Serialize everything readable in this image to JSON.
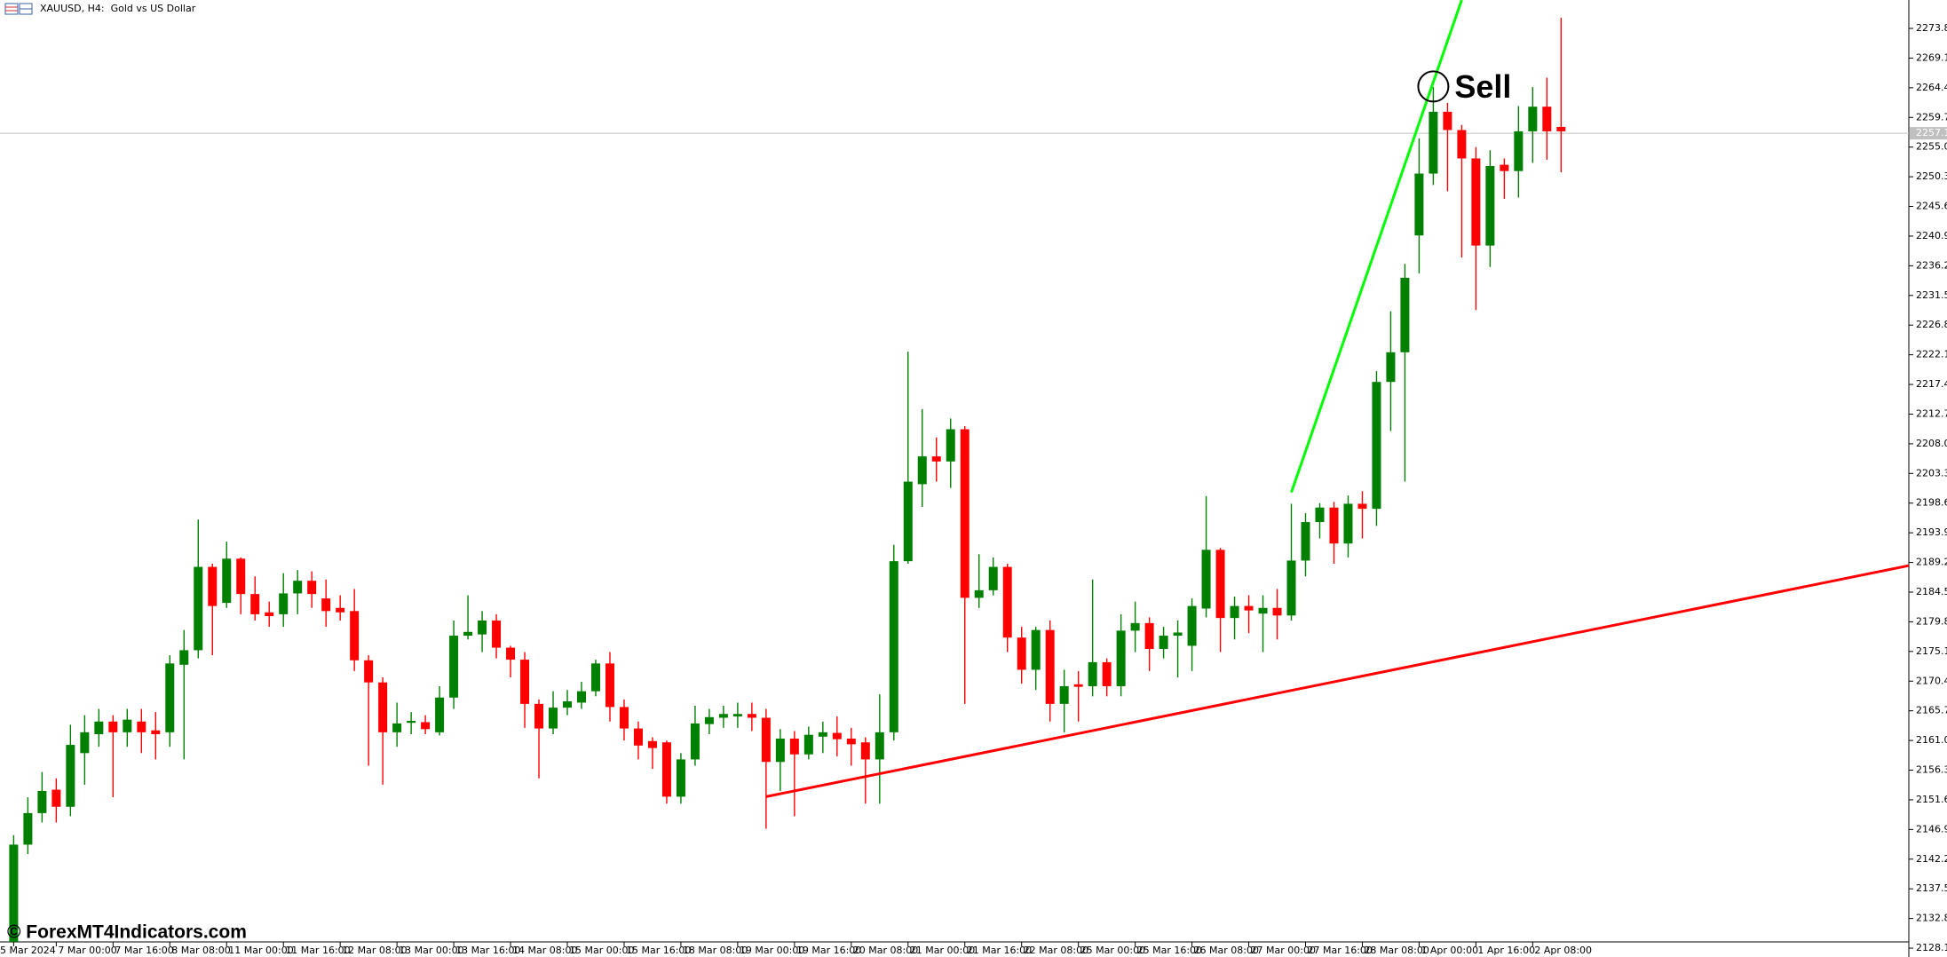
{
  "chart_data": {
    "type": "candlestick",
    "title": "XAUUSD, H4:  Gold vs US Dollar",
    "watermark": "© ForexMT4Indicators.com",
    "categories": [
      "5 Mar 2024",
      null,
      null,
      "7 Mar 00:00",
      null,
      null,
      null,
      "7 Mar 16:00",
      null,
      null,
      null,
      "8 Mar 08:00",
      null,
      null,
      null,
      "11 Mar 00:00",
      null,
      null,
      null,
      "11 Mar 16:00",
      null,
      null,
      null,
      "12 Mar 08:00",
      null,
      null,
      null,
      "13 Mar 00:00",
      null,
      null,
      null,
      "13 Mar 16:00",
      null,
      null,
      null,
      "14 Mar 08:00",
      null,
      null,
      null,
      "15 Mar 00:00",
      null,
      null,
      null,
      "15 Mar 16:00",
      null,
      null,
      null,
      "18 Mar 08:00",
      null,
      null,
      null,
      "19 Mar 00:00",
      null,
      null,
      null,
      "19 Mar 16:00",
      null,
      null,
      null,
      "20 Mar 08:00",
      null,
      null,
      null,
      "21 Mar 00:00",
      null,
      null,
      null,
      "21 Mar 16:00",
      null,
      null,
      null,
      "22 Mar 08:00",
      null,
      null,
      null,
      "25 Mar 00:00",
      null,
      null,
      null,
      "25 Mar 16:00",
      null,
      null,
      null,
      "26 Mar 08:00",
      null,
      null,
      null,
      "27 Mar 00:00",
      null,
      null,
      null,
      "27 Mar 16:00",
      null,
      null,
      null,
      "28 Mar 08:00",
      null,
      null,
      null,
      "1 Apr 00:00",
      null,
      null,
      null,
      "1 Apr 16:00",
      null,
      null,
      null,
      "2 Apr 08:00",
      null,
      null
    ],
    "open": [
      2129,
      2144.5,
      2149.5,
      2153.2,
      2150.5,
      2159,
      2162,
      2164,
      2162.3,
      2164,
      2162.6,
      2162.3,
      2173,
      2175.3,
      2188.5,
      2182.8,
      2189.8,
      2184.2,
      2181.3,
      2181,
      2184.3,
      2186.3,
      2183.5,
      2182,
      2181.5,
      2173.7,
      2170.2,
      2162.3,
      2163.8,
      2163.9,
      2162.3,
      2167.8,
      2177.6,
      2177.8,
      2180,
      2175.7,
      2173.8,
      2166.8,
      2162.9,
      2166.2,
      2167,
      2168.8,
      2173.2,
      2166.3,
      2162.9,
      2160.9,
      2160.7,
      2152.1,
      2158,
      2163.6,
      2164.6,
      2164.8,
      2165.2,
      2164.6,
      2157.6,
      2161.3,
      2158.8,
      2161.6,
      2162.2,
      2161.3,
      2160.7,
      2158,
      2162.3,
      2189.4,
      2201.6,
      2206,
      2205.2,
      2210.3,
      2183.6,
      2184.8,
      2188.5,
      2177.3,
      2172.2,
      2178.5,
      2166.8,
      2169.9,
      2169.6,
      2173.4,
      2169.6,
      2178.4,
      2179.6,
      2175.5,
      2177.6,
      2176,
      2181.9,
      2191.2,
      2180.4,
      2182.3,
      2181.1,
      2182,
      2180.8,
      2189.5,
      2195.6,
      2197.9,
      2192.2,
      2198.5,
      2197.7,
      2217.8,
      2222.5,
      2241,
      2250.8,
      2260.6,
      2257.7,
      2253.2,
      2239.4,
      2252.2,
      2251.2,
      2257.5,
      2261.4,
      2258.2
    ],
    "high": [
      2146,
      2152,
      2156,
      2155,
      2163.5,
      2165,
      2166,
      2165,
      2166,
      2166,
      2165.5,
      2174.5,
      2178.5,
      2196,
      2189,
      2192.5,
      2190,
      2187,
      2183,
      2187.5,
      2188,
      2187.8,
      2186.5,
      2184,
      2185,
      2174.5,
      2171,
      2167,
      2165.5,
      2165,
      2169.6,
      2180,
      2184,
      2181.5,
      2181,
      2176,
      2175,
      2167.5,
      2168.8,
      2169,
      2170.3,
      2173.8,
      2175,
      2167.5,
      2164,
      2161.5,
      2161,
      2159,
      2166.5,
      2166,
      2166.5,
      2167,
      2167,
      2166,
      2162.8,
      2162.5,
      2163.2,
      2164,
      2164.8,
      2163,
      2161.5,
      2168.3,
      2192,
      2222.6,
      2213.5,
      2209,
      2212,
      2210.8,
      2190.5,
      2190,
      2189,
      2179,
      2179,
      2180,
      2172.2,
      2172,
      2186.5,
      2174,
      2181,
      2183,
      2180.5,
      2179,
      2180,
      2183.5,
      2199.7,
      2191.5,
      2183.8,
      2184,
      2184,
      2185,
      2198.5,
      2197,
      2198.6,
      2198.8,
      2199.8,
      2200.5,
      2219.5,
      2229,
      2236.5,
      2256.4,
      2264.5,
      2262,
      2258.5,
      2255,
      2254.5,
      2253.2,
      2261.5,
      2264.5,
      2266,
      2275.5
    ],
    "low": [
      2127.5,
      2143,
      2148,
      2148,
      2149,
      2154,
      2160,
      2152,
      2160,
      2159,
      2158,
      2160,
      2158,
      2174,
      2174.5,
      2182,
      2181,
      2180,
      2179,
      2179,
      2181,
      2182,
      2179,
      2180,
      2172,
      2157,
      2154,
      2160,
      2162,
      2162,
      2161.8,
      2166,
      2177,
      2175,
      2174,
      2171,
      2163,
      2155,
      2162,
      2165,
      2166,
      2168,
      2164,
      2161,
      2158,
      2156.5,
      2151,
      2151,
      2157,
      2162,
      2163,
      2163,
      2162.5,
      2147,
      2153,
      2149,
      2158,
      2159,
      2158.5,
      2157,
      2151,
      2151,
      2161,
      2189,
      2198,
      2202,
      2201,
      2166.8,
      2182,
      2184,
      2175,
      2170,
      2169,
      2164,
      2162.3,
      2164,
      2168,
      2168,
      2168,
      2175,
      2172,
      2174,
      2171,
      2172,
      2180.5,
      2175,
      2177,
      2178,
      2175,
      2177,
      2180,
      2187,
      2193,
      2189,
      2190,
      2193,
      2195,
      2210,
      2202,
      2235,
      2249,
      2248,
      2237.5,
      2229.2,
      2236,
      2246.8,
      2247,
      2252.5,
      2253,
      2251
    ],
    "close": [
      2144.5,
      2149.5,
      2153,
      2150.5,
      2160.3,
      2162.3,
      2164,
      2162.3,
      2164.3,
      2162.3,
      2162,
      2173.2,
      2175.3,
      2188.5,
      2182.3,
      2189.8,
      2184.2,
      2181,
      2180.7,
      2184.3,
      2186.3,
      2184.2,
      2181.5,
      2181.3,
      2173.7,
      2170.2,
      2162.3,
      2163.7,
      2164.1,
      2162.8,
      2167.8,
      2177.6,
      2178.2,
      2180,
      2175.7,
      2173.8,
      2166.8,
      2162.9,
      2166.2,
      2167.2,
      2168.8,
      2173.2,
      2166.3,
      2162.9,
      2160.2,
      2159.8,
      2152.1,
      2158,
      2163.7,
      2164.7,
      2165.2,
      2165.2,
      2164.6,
      2157.6,
      2161.3,
      2158.8,
      2161.9,
      2162.3,
      2161.2,
      2160.4,
      2158,
      2162.3,
      2189.4,
      2202,
      2206,
      2205.2,
      2210.3,
      2183.6,
      2184.8,
      2188.5,
      2177.3,
      2172.2,
      2178.5,
      2166.8,
      2169.6,
      2169.5,
      2173.4,
      2169.6,
      2178.4,
      2179.6,
      2175.5,
      2177.6,
      2178.1,
      2182.3,
      2191.2,
      2180.4,
      2182.3,
      2181.6,
      2182,
      2180.8,
      2189.5,
      2195.6,
      2197.9,
      2192.2,
      2198.5,
      2197.7,
      2217.8,
      2222.5,
      2234.3,
      2250.8,
      2260.6,
      2257.7,
      2253.2,
      2239.4,
      2252,
      2251.2,
      2257.5,
      2261.4,
      2257.5,
      2257.5
    ],
    "up_color": "#008000",
    "down_color": "#ff0000",
    "ylim": [
      2126.7,
      2278.3
    ],
    "yticks": [
      {
        "value": 2128.1,
        "label": "2128.10"
      },
      {
        "value": 2132.8,
        "label": "2132.80"
      },
      {
        "value": 2137.5,
        "label": "2137.50"
      },
      {
        "value": 2142.2,
        "label": "2142.20"
      },
      {
        "value": 2146.9,
        "label": "2146.90"
      },
      {
        "value": 2151.6,
        "label": "2151.60"
      },
      {
        "value": 2156.3,
        "label": "2156.30"
      },
      {
        "value": 2161.0,
        "label": "2161.00"
      },
      {
        "value": 2165.7,
        "label": "2165.70"
      },
      {
        "value": 2170.4,
        "label": "2170.40"
      },
      {
        "value": 2175.1,
        "label": "2175.10"
      },
      {
        "value": 2179.8,
        "label": "2179.80"
      },
      {
        "value": 2184.5,
        "label": "2184.50"
      },
      {
        "value": 2189.2,
        "label": "2189.20"
      },
      {
        "value": 2193.9,
        "label": "2193.90"
      },
      {
        "value": 2198.6,
        "label": "2198.60"
      },
      {
        "value": 2203.3,
        "label": "2203.30"
      },
      {
        "value": 2208.0,
        "label": "2208.00"
      },
      {
        "value": 2212.7,
        "label": "2212.70"
      },
      {
        "value": 2217.4,
        "label": "2217.40"
      },
      {
        "value": 2222.1,
        "label": "2222.10"
      },
      {
        "value": 2226.8,
        "label": "2226.80"
      },
      {
        "value": 2231.5,
        "label": "2231.50"
      },
      {
        "value": 2236.2,
        "label": "2236.20"
      },
      {
        "value": 2240.9,
        "label": "2240.90"
      },
      {
        "value": 2245.6,
        "label": "2245.60"
      },
      {
        "value": 2250.3,
        "label": "2250.30"
      },
      {
        "value": 2255.0,
        "label": "2255.00"
      },
      {
        "value": 2259.7,
        "label": "2259.70"
      },
      {
        "value": 2264.4,
        "label": "2264.40"
      },
      {
        "value": 2269.1,
        "label": "2269.10"
      },
      {
        "value": 2273.8,
        "label": "2273.80"
      }
    ],
    "current_price": 2257.19,
    "trendlines": [
      {
        "color": "#ff0000",
        "x": [
          53,
          133.5
        ],
        "y": [
          2152.1,
          2188.7
        ]
      },
      {
        "color": "#00ff00",
        "x": [
          90,
          102
        ],
        "y": [
          2200.3,
          2278.3
        ]
      }
    ],
    "annotations": [
      {
        "text": "Sell",
        "x": 100,
        "y": 2264.6
      }
    ]
  }
}
